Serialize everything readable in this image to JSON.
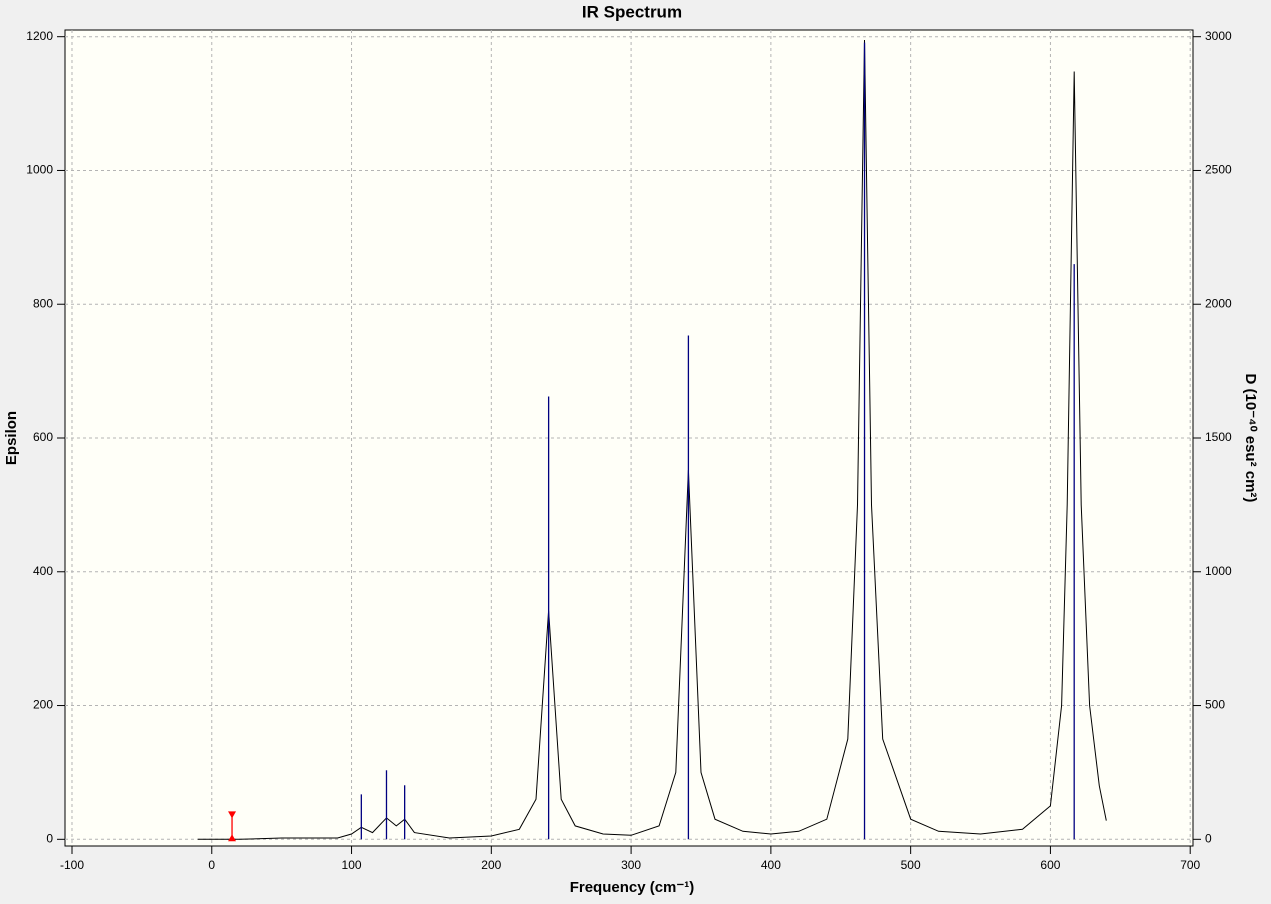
{
  "chart_data": {
    "type": "line",
    "title": "IR Spectrum",
    "xlabel": "Frequency (cm⁻¹)",
    "ylabel": "Epsilon",
    "y2label": "D (10⁻⁴⁰ esu² cm²)",
    "xlim": [
      -105,
      702
    ],
    "ylim": [
      -10,
      1210
    ],
    "y2lim": [
      -25,
      3025
    ],
    "xticks": [
      -100,
      0,
      100,
      200,
      300,
      400,
      500,
      600,
      700
    ],
    "yticks": [
      0,
      200,
      400,
      600,
      800,
      1000,
      1200
    ],
    "y2ticks": [
      0,
      500,
      1000,
      1500,
      2000,
      2500,
      3000
    ],
    "grid": true,
    "background": "#fffff8",
    "series": [
      {
        "style": "line",
        "color": "#000000",
        "x": [
          -10,
          20,
          50,
          90,
          100,
          107,
          115,
          125,
          132,
          138,
          145,
          170,
          200,
          220,
          232,
          241,
          250,
          260,
          280,
          300,
          320,
          332,
          341,
          350,
          360,
          380,
          400,
          420,
          440,
          455,
          462,
          467,
          472,
          480,
          500,
          520,
          550,
          580,
          600,
          608,
          612,
          617,
          622,
          628,
          635,
          640
        ],
        "values": [
          0,
          0,
          2,
          2,
          8,
          18,
          10,
          32,
          20,
          30,
          10,
          2,
          5,
          15,
          60,
          342,
          60,
          20,
          8,
          6,
          20,
          100,
          552,
          100,
          30,
          12,
          8,
          12,
          30,
          150,
          500,
          1195,
          500,
          150,
          30,
          12,
          8,
          15,
          50,
          200,
          500,
          1148,
          500,
          200,
          80,
          28
        ]
      },
      {
        "style": "stick",
        "color": "#000080",
        "axis": "y2",
        "x": [
          107,
          125,
          138,
          241,
          341,
          467,
          617
        ],
        "values": [
          168,
          258,
          202,
          1655,
          1883,
          2978,
          2150
        ]
      },
      {
        "style": "marker",
        "color": "#ff0000",
        "axis": "y2",
        "x": [
          14.5
        ],
        "values": [
          97
        ]
      }
    ]
  }
}
